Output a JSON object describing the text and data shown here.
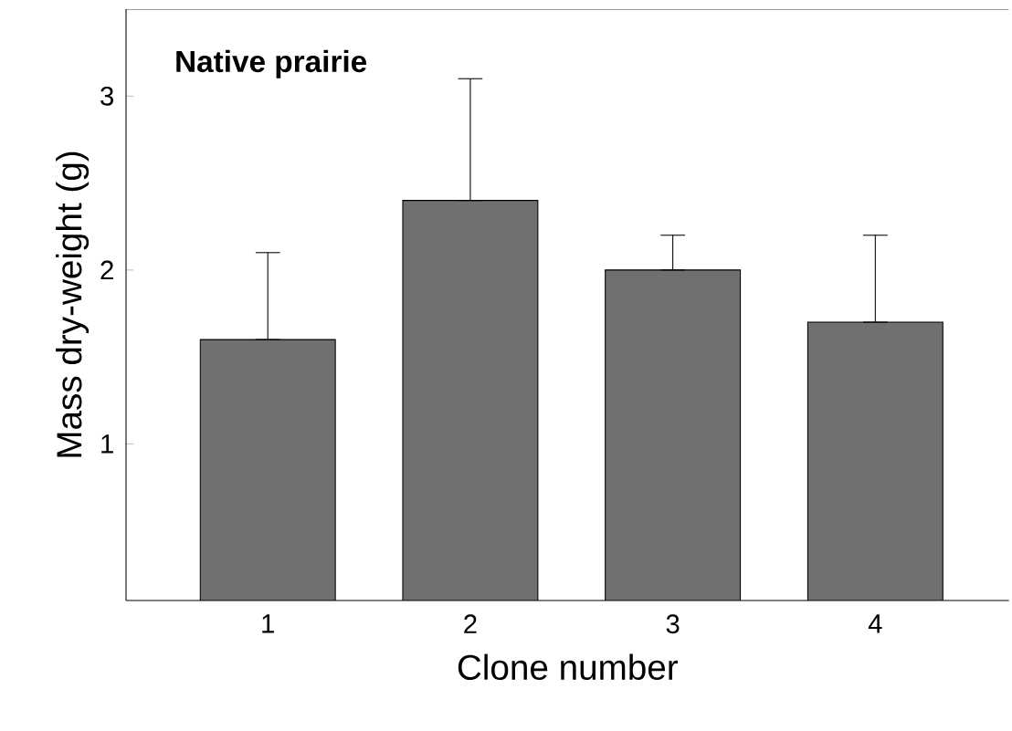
{
  "chart_data": {
    "type": "bar",
    "title": "Native prairie",
    "xlabel": "Clone number",
    "ylabel": "Mass dry-weight (g)",
    "categories": [
      "1",
      "2",
      "3",
      "4"
    ],
    "values": [
      1.6,
      2.4,
      2.0,
      1.7
    ],
    "errors": [
      [
        1.6,
        2.1
      ],
      [
        2.4,
        3.1
      ],
      [
        2.0,
        2.2
      ],
      [
        1.7,
        2.2
      ]
    ],
    "color": "#707070",
    "ylim": [
      0.1,
      3.5
    ],
    "yticks": [
      1,
      2,
      3
    ],
    "grid": false
  }
}
